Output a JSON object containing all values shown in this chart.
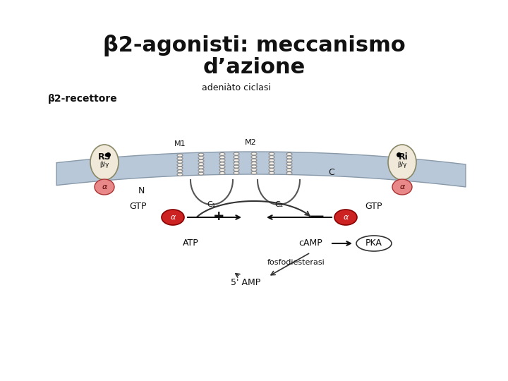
{
  "title_line1": "β2-agonisti: meccanismo",
  "title_line2": "d’azione",
  "subtitle_label": "β2-recettore",
  "bg_color": "#ffffff",
  "membrane_color": "#b8c8d8",
  "membrane_edge_color": "#8899aa",
  "helix_color": "#888888",
  "protein_fill": "#f0e8e0",
  "red_blob_color": "#cc2222",
  "pink_blob_color": "#e88888",
  "arrow_color": "#222222",
  "text_color": "#111111",
  "label_adenylate_ciclasi": "adeniàto ciclasi",
  "label_beta2_recettore": "β2-recettore",
  "label_RS": "RS",
  "label_RI": "Ri",
  "label_N": "N",
  "label_GTP_left": "GTP",
  "label_GTP_right": "GTP",
  "label_M1": "M1",
  "label_M2": "M2",
  "label_C1": "C₁",
  "label_C2": "C₂",
  "label_C": "C",
  "label_ATP": "ATP",
  "label_cAMP": "cAMP",
  "label_PKA": "PKA",
  "label_fosfodiesterasi": "fosfodiesterasi",
  "label_5AMP": "5' AMP",
  "label_plus": "+",
  "label_minus": "—"
}
